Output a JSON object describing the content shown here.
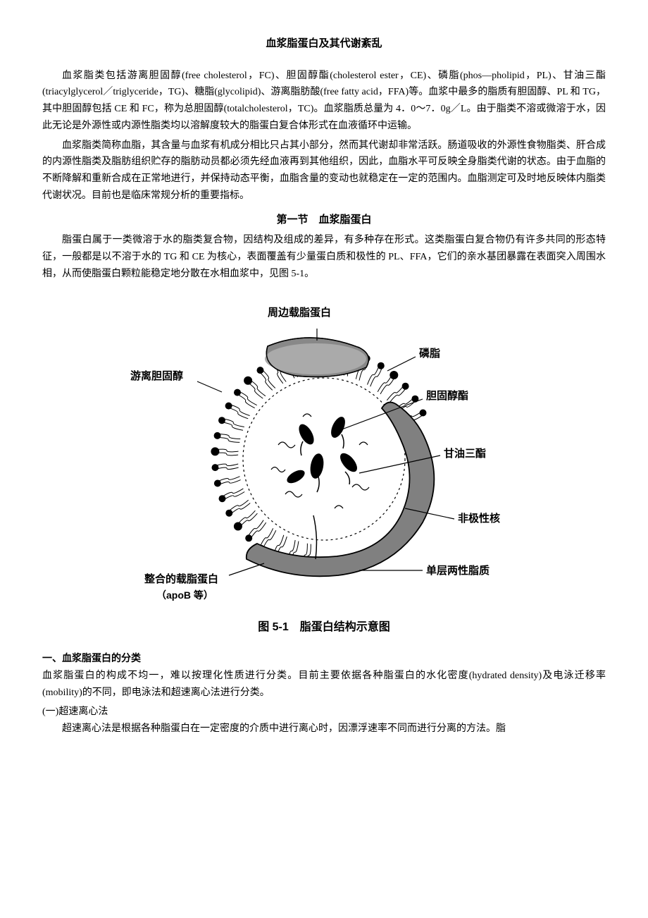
{
  "title": "血浆脂蛋白及其代谢紊乱",
  "para1": "血浆脂类包括游离胆固醇(free cholesterol，FC)、胆固醇酯(cholesterol ester，CE)、磷脂(phos—pholipid，PL)、甘油三酯(triacylglycerol／triglyceride，TG)、糖脂(glycolipid)、游离脂肪酸(free fatty acid，FFA)等。血浆中最多的脂质有胆固醇、PL 和 TG，其中胆固醇包括 CE 和 FC，称为总胆固醇(totalcholesterol，TC)。血浆脂质总量为 4．0～7．0g／L。由于脂类不溶或微溶于水，因此无论是外源性或内源性脂类均以溶解度较大的脂蛋白复合体形式在血液循环中运输。",
  "para2": "血浆脂类简称血脂，其含量与血浆有机成分相比只占其小部分，然而其代谢却非常活跃。肠道吸收的外源性食物脂类、肝合成的内源性脂类及脂肪组织贮存的脂肪动员都必须先经血液再到其他组织，因此，血脂水平可反映全身脂类代谢的状态。由于血脂的不断降解和重新合成在正常地进行，并保持动态平衡，血脂含量的变动也就稳定在一定的范围内。血脂测定可及时地反映体内脂类代谢状况。目前也是临床常规分析的重要指标。",
  "section1_title": "第一节　血浆脂蛋白",
  "para3": "脂蛋白属于一类微溶于水的脂类复合物，因结构及组成的差异，有多种存在形式。这类脂蛋白复合物仍有许多共同的形态特征，一般都是以不溶于水的 TG 和 CE 为核心，表面覆盖有少量蛋白质和极性的 PL、FFA，它们的亲水基团暴露在表面突入周围水相，从而使脂蛋白颗粒能稳定地分散在水相血浆中，见图 5-1。",
  "figure": {
    "labels": {
      "peripheral_apo": "周边载脂蛋白",
      "phospholipid": "磷脂",
      "free_cholesterol": "游离胆固醇",
      "cholesterol_ester": "胆固醇酯",
      "triglyceride": "甘油三酯",
      "nonpolar_core": "非极性核",
      "monolayer": "单层两性脂质",
      "integral_apo": "整合的载脂蛋白",
      "integral_apo_sub": "（apoB 等）"
    },
    "caption": "图 5-1　脂蛋白结构示意图",
    "colors": {
      "stroke": "#000000",
      "fill_apo": "#808080",
      "fill_apo_light": "#a0a0a0",
      "background": "#ffffff"
    }
  },
  "subhead1": "一、血浆脂蛋白的分类",
  "para4": "血浆脂蛋白的构成不均一，难以按理化性质进行分类。目前主要依据各种脂蛋白的水化密度(hydrated density)及电泳迁移率(mobility)的不同，即电泳法和超速离心法进行分类。",
  "subhead2": "(一)超速离心法",
  "para5": "超速离心法是根据各种脂蛋白在一定密度的介质中进行离心时，因漂浮速率不同而进行分离的方法。脂"
}
